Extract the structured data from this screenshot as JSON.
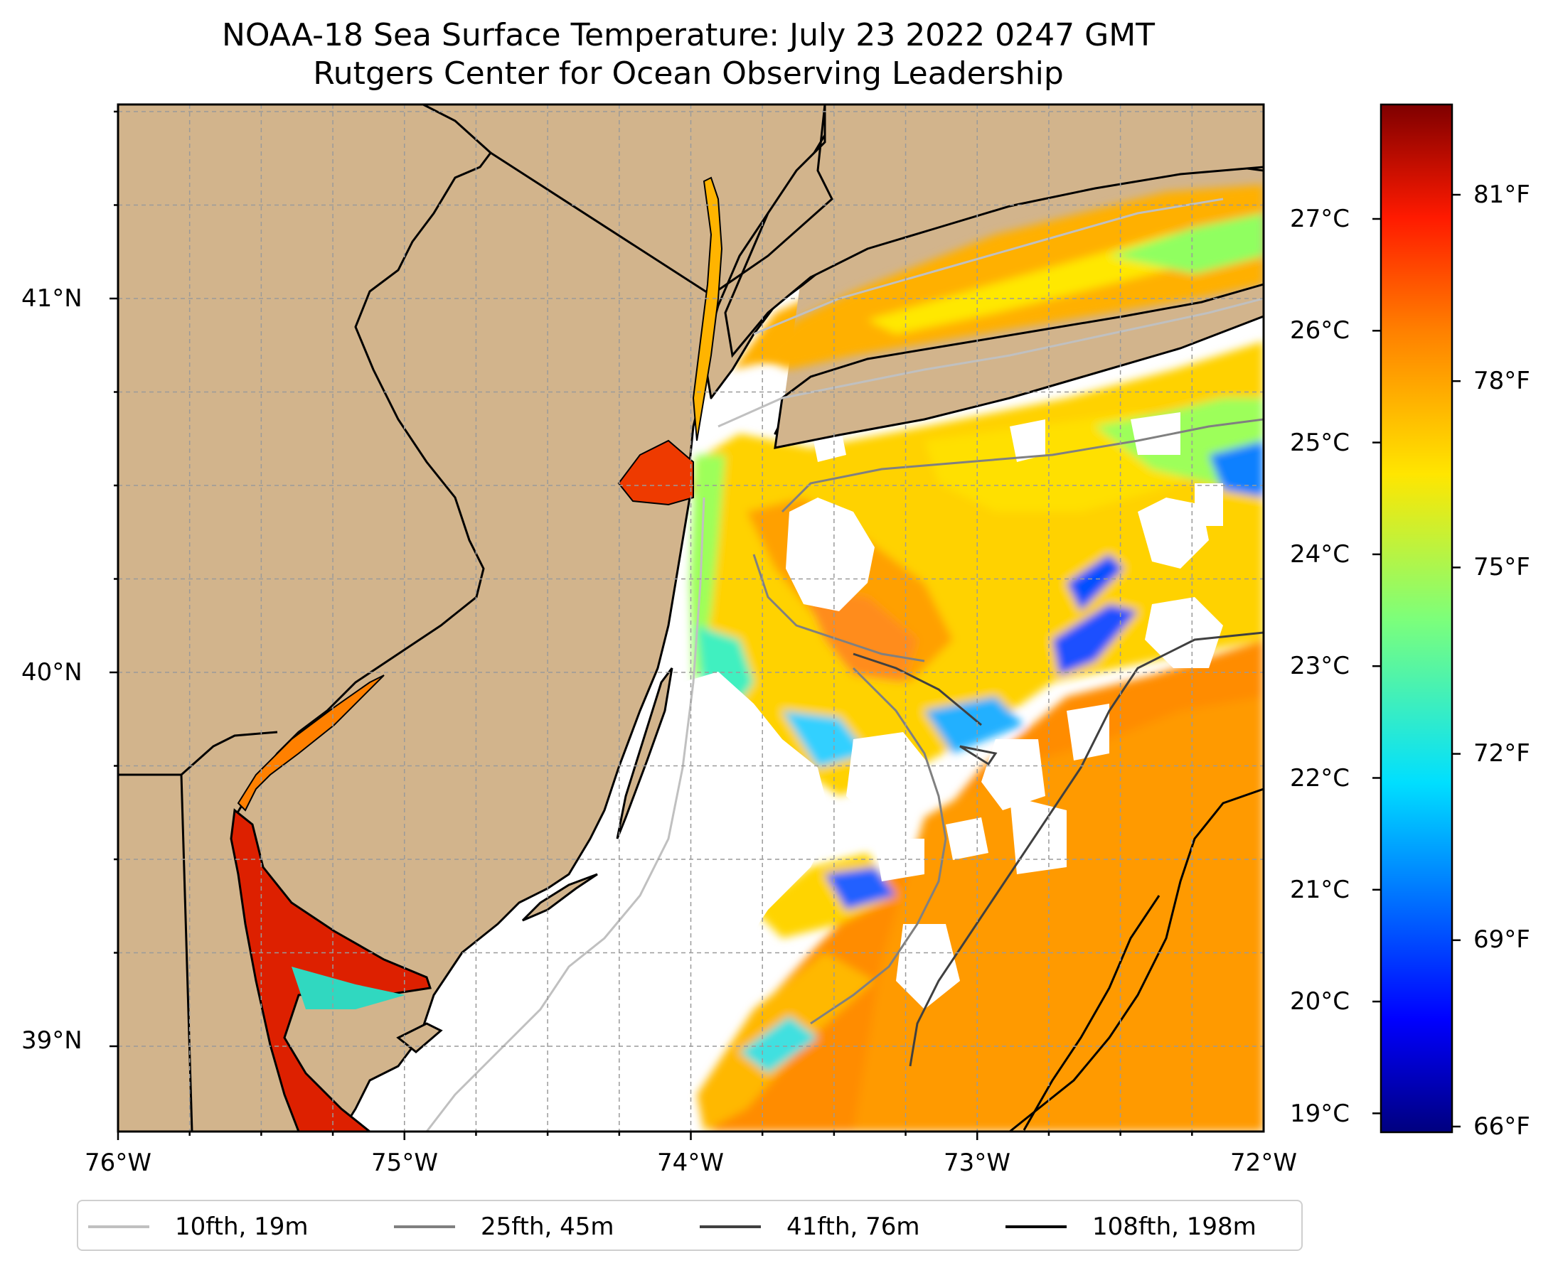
{
  "title_line1": "NOAA-18 Sea Surface Temperature: July 23 2022 0247 GMT",
  "title_line2": "Rutgers Center for Ocean Observing Leadership",
  "lat_ticks": [
    {
      "value": 41,
      "label": "41°N"
    },
    {
      "value": 40,
      "label": "40°N"
    },
    {
      "value": 39,
      "label": "39°N"
    }
  ],
  "lon_ticks": [
    {
      "value": -76,
      "label": "76°W"
    },
    {
      "value": -75,
      "label": "75°W"
    },
    {
      "value": -74,
      "label": "74°W"
    },
    {
      "value": -73,
      "label": "73°W"
    },
    {
      "value": -72,
      "label": "72°W"
    }
  ],
  "colorbar": {
    "colormap": "jet",
    "celsius_labels": [
      "27°C",
      "26°C",
      "25°C",
      "24°C",
      "23°C",
      "22°C",
      "21°C",
      "20°C",
      "19°C"
    ],
    "fahrenheit_labels": [
      "81°F",
      "78°F",
      "75°F",
      "72°F",
      "69°F",
      "66°F"
    ]
  },
  "colors": {
    "land": "#d2b48c",
    "no_data": "#ffffff",
    "coastline": "#000000"
  },
  "legend": [
    {
      "label": "10fth, 19m",
      "color": "#c0c0c0"
    },
    {
      "label": "25fth, 45m",
      "color": "#808080"
    },
    {
      "label": "41fth, 76m",
      "color": "#404040"
    },
    {
      "label": "108fth, 198m",
      "color": "#000000"
    }
  ]
}
